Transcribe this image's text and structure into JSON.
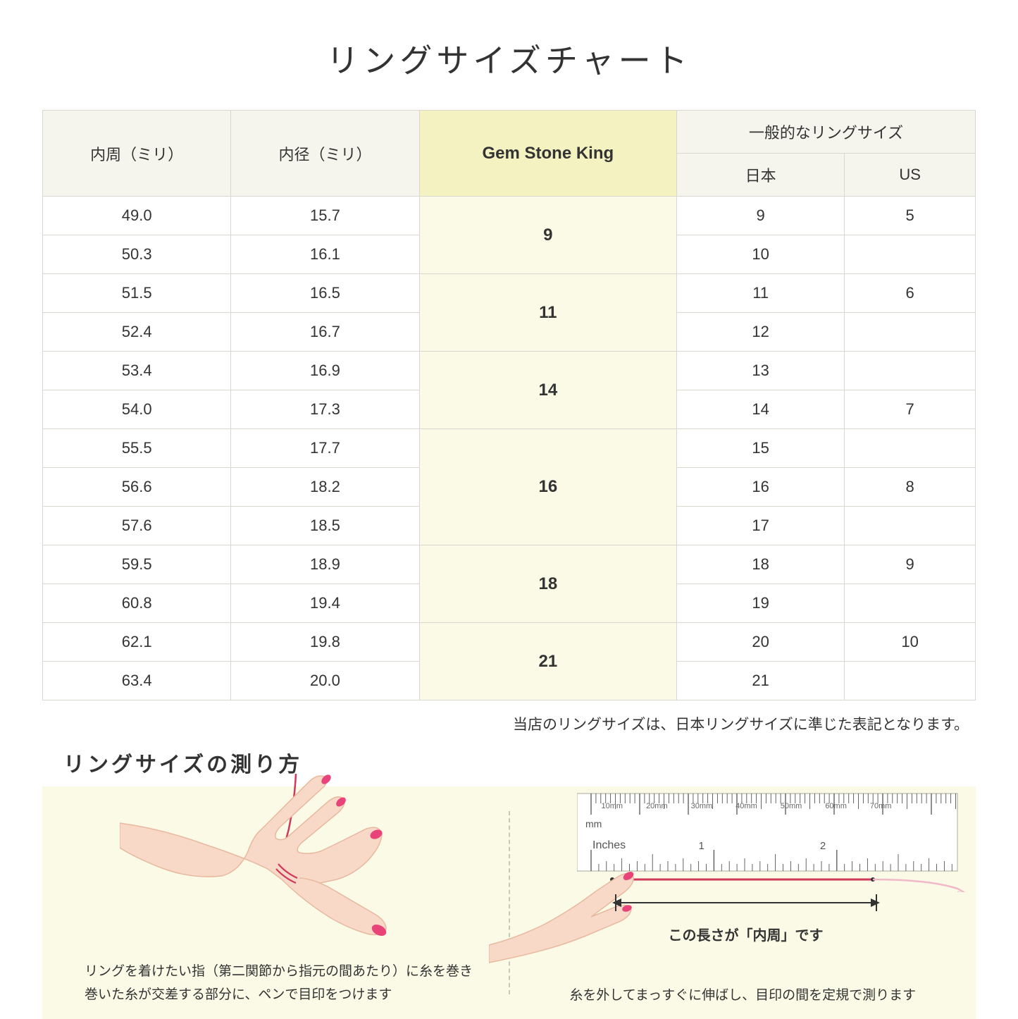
{
  "title": "リングサイズチャート",
  "table": {
    "headers": {
      "col1": "内周（ミリ）",
      "col2": "内径（ミリ）",
      "col3": "Gem Stone King",
      "col4_group": "一般的なリングサイズ",
      "col4a": "日本",
      "col4b": "US"
    },
    "groups": [
      {
        "gsk": "9",
        "rows": [
          {
            "c": "49.0",
            "d": "15.7",
            "jp": "9",
            "us": "5"
          },
          {
            "c": "50.3",
            "d": "16.1",
            "jp": "10",
            "us": ""
          }
        ]
      },
      {
        "gsk": "11",
        "rows": [
          {
            "c": "51.5",
            "d": "16.5",
            "jp": "11",
            "us": "6"
          },
          {
            "c": "52.4",
            "d": "16.7",
            "jp": "12",
            "us": ""
          }
        ]
      },
      {
        "gsk": "14",
        "rows": [
          {
            "c": "53.4",
            "d": "16.9",
            "jp": "13",
            "us": ""
          },
          {
            "c": "54.0",
            "d": "17.3",
            "jp": "14",
            "us": "7"
          }
        ]
      },
      {
        "gsk": "16",
        "rows": [
          {
            "c": "55.5",
            "d": "17.7",
            "jp": "15",
            "us": ""
          },
          {
            "c": "56.6",
            "d": "18.2",
            "jp": "16",
            "us": "8"
          },
          {
            "c": "57.6",
            "d": "18.5",
            "jp": "17",
            "us": ""
          }
        ]
      },
      {
        "gsk": "18",
        "rows": [
          {
            "c": "59.5",
            "d": "18.9",
            "jp": "18",
            "us": "9"
          },
          {
            "c": "60.8",
            "d": "19.4",
            "jp": "19",
            "us": ""
          }
        ]
      },
      {
        "gsk": "21",
        "rows": [
          {
            "c": "62.1",
            "d": "19.8",
            "jp": "20",
            "us": "10"
          },
          {
            "c": "63.4",
            "d": "20.0",
            "jp": "21",
            "us": ""
          }
        ]
      }
    ]
  },
  "note": "当店のリングサイズは、日本リングサイズに準じた表記となります。",
  "howto": {
    "title": "リングサイズの測り方",
    "left_caption_l1": "リングを着けたい指（第二関節から指元の間あたり）に糸を巻き",
    "left_caption_l2": "巻いた糸が交差する部分に、ペンで目印をつけます",
    "right_label": "この長さが「内周」です",
    "right_caption": "糸を外してまっすぐに伸ばし、目印の間を定規で測ります",
    "ruler_mm": "mm",
    "ruler_inches": "Inches",
    "ruler_mm_marks": [
      "10mm",
      "20mm",
      "30mm",
      "40mm",
      "50mm",
      "60mm",
      "70mm"
    ],
    "ruler_inch_marks": [
      "1",
      "2"
    ]
  },
  "colors": {
    "header_bg": "#f5f5ed",
    "gsk_header_bg": "#f3f2c0",
    "gsk_cell_bg": "#fbfae6",
    "howto_bg": "#fbfae6",
    "border": "#d8d8d0",
    "skin": "#f8d9c8",
    "skin_dark": "#e8b89f",
    "nail": "#e8447a",
    "thread": "#d03a5a"
  }
}
